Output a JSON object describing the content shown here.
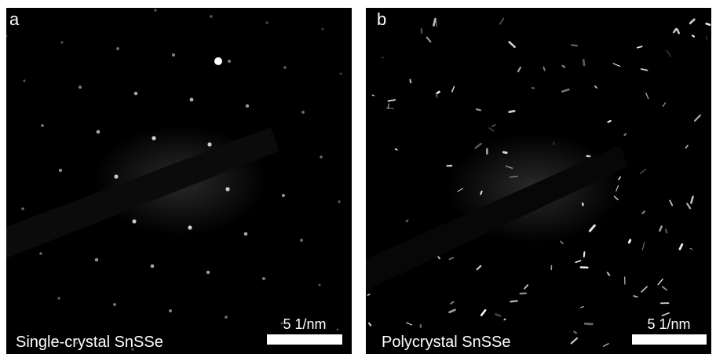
{
  "panels": [
    {
      "label": "a",
      "caption": "Single-crystal SnSSe",
      "scale_bar": "5 1/nm"
    },
    {
      "label": "b",
      "caption": "Polycrystal SnSSe",
      "scale_bar": "5 1/nm"
    }
  ]
}
